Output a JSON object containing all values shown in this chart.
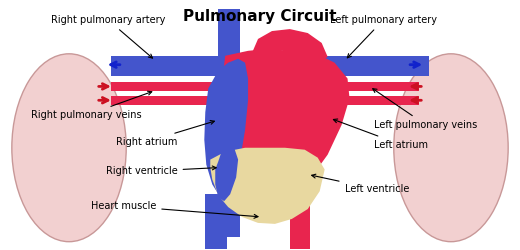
{
  "title": "Pulmonary Circuit",
  "title_fontsize": 11,
  "bg_color": "#ffffff",
  "lung_color": "#f2d0d0",
  "lung_edge_color": "#c89898",
  "heart_red": "#e8254e",
  "heart_blue": "#4455cc",
  "heart_muscle_color": "#e8d8a0",
  "artery_blue": "#4455cc",
  "artery_red": "#e8254e",
  "arrow_blue": "#1122cc",
  "arrow_red": "#cc1122",
  "label_fontsize": 7,
  "labels": {
    "right_pulmonary_artery": "Right pulmonary artery",
    "left_pulmonary_artery": "Left pulmonary artery",
    "right_pulmonary_veins": "Right pulmonary veins",
    "left_pulmonary_veins": "Left pulmonary veins",
    "right_atrium": "Right atrium",
    "left_atrium": "Left atrium",
    "right_ventricle": "Right ventricle",
    "left_ventricle": "Left ventricle",
    "heart_muscle": "Heart muscle"
  }
}
